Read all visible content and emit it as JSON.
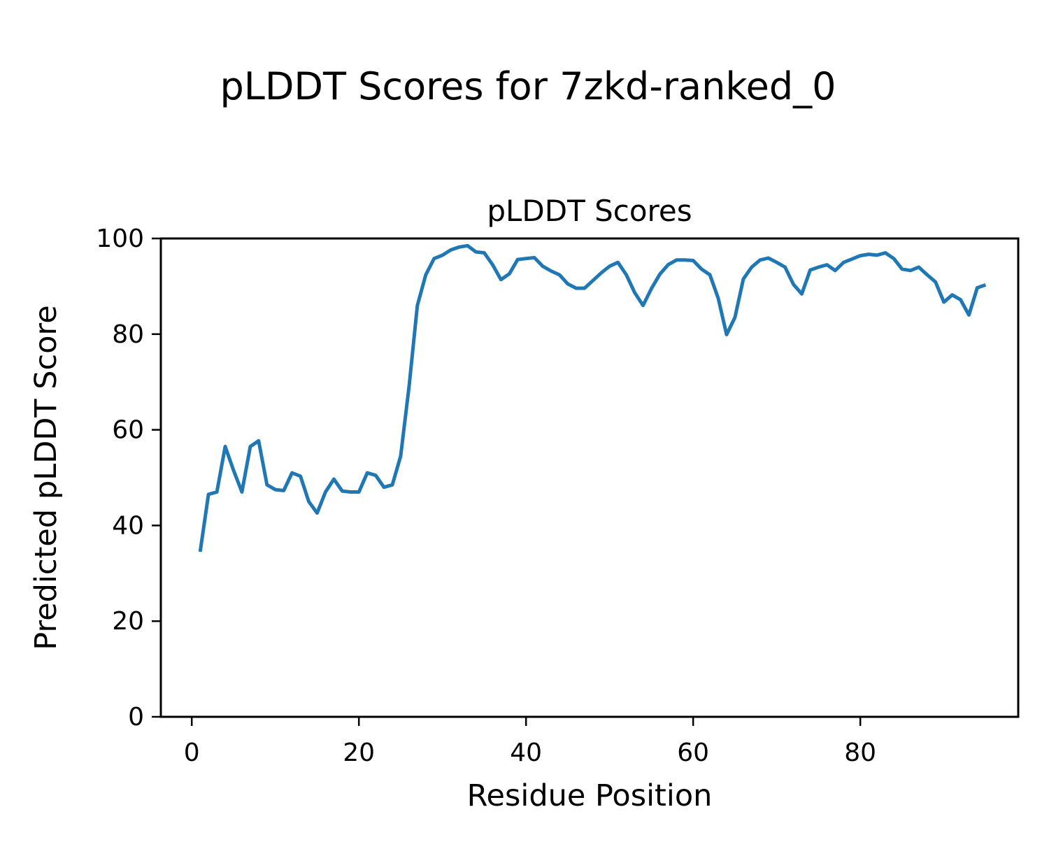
{
  "figure": {
    "suptitle": "pLDDT Scores for 7zkd-ranked_0",
    "axes_title": "pLDDT Scores",
    "xlabel": "Residue Position",
    "ylabel": "Predicted pLDDT Score"
  },
  "chart_data": {
    "type": "line",
    "title": "pLDDT Scores",
    "suptitle": "pLDDT Scores for 7zkd-ranked_0",
    "xlabel": "Residue Position",
    "ylabel": "Predicted pLDDT Score",
    "grid": false,
    "legend": "none",
    "line_color": "#1f77b4",
    "line_width": 5,
    "xlim": [
      -3.7,
      98.9
    ],
    "ylim": [
      0,
      100
    ],
    "xticks": [
      0,
      20,
      40,
      60,
      80
    ],
    "yticks": [
      0,
      20,
      40,
      60,
      80,
      100
    ],
    "series": [
      {
        "name": "pLDDT",
        "x": [
          1,
          2,
          3,
          4,
          5,
          6,
          7,
          8,
          9,
          10,
          11,
          12,
          13,
          14,
          15,
          16,
          17,
          18,
          19,
          20,
          21,
          22,
          23,
          24,
          25,
          26,
          27,
          28,
          29,
          30,
          31,
          32,
          33,
          34,
          35,
          36,
          37,
          38,
          39,
          40,
          41,
          42,
          43,
          44,
          45,
          46,
          47,
          48,
          49,
          50,
          51,
          52,
          53,
          54,
          55,
          56,
          57,
          58,
          59,
          60,
          61,
          62,
          63,
          64,
          65,
          66,
          67,
          68,
          69,
          70,
          71,
          72,
          73,
          74,
          75,
          76,
          77,
          78,
          79,
          80,
          81,
          82,
          83,
          84,
          85,
          86,
          87,
          88,
          89,
          90,
          91,
          92,
          93,
          94,
          95
        ],
        "y": [
          34.5,
          46.5,
          47.0,
          56.5,
          51.5,
          47.0,
          56.5,
          57.7,
          48.5,
          47.5,
          47.3,
          51.0,
          50.3,
          45.0,
          42.6,
          47.0,
          49.7,
          47.2,
          47.0,
          47.0,
          51.0,
          50.5,
          48.0,
          48.5,
          54.5,
          69.0,
          86.0,
          92.4,
          95.8,
          96.5,
          97.6,
          98.2,
          98.5,
          97.2,
          97.0,
          94.5,
          91.4,
          92.6,
          95.6,
          95.8,
          96.0,
          94.2,
          93.2,
          92.4,
          90.5,
          89.6,
          89.6,
          91.2,
          92.8,
          94.2,
          95.0,
          92.4,
          88.7,
          86.0,
          89.5,
          92.5,
          94.5,
          95.5,
          95.5,
          95.4,
          93.6,
          92.4,
          87.5,
          79.9,
          83.5,
          91.5,
          94.0,
          95.5,
          95.9,
          95.0,
          94.0,
          90.4,
          88.4,
          93.4,
          94.0,
          94.5,
          93.3,
          95.0,
          95.7,
          96.4,
          96.7,
          96.5,
          97.0,
          95.8,
          93.6,
          93.3,
          94.0,
          92.4,
          90.9,
          86.7,
          88.2,
          87.2,
          84.0,
          89.7,
          90.3
        ]
      }
    ]
  }
}
